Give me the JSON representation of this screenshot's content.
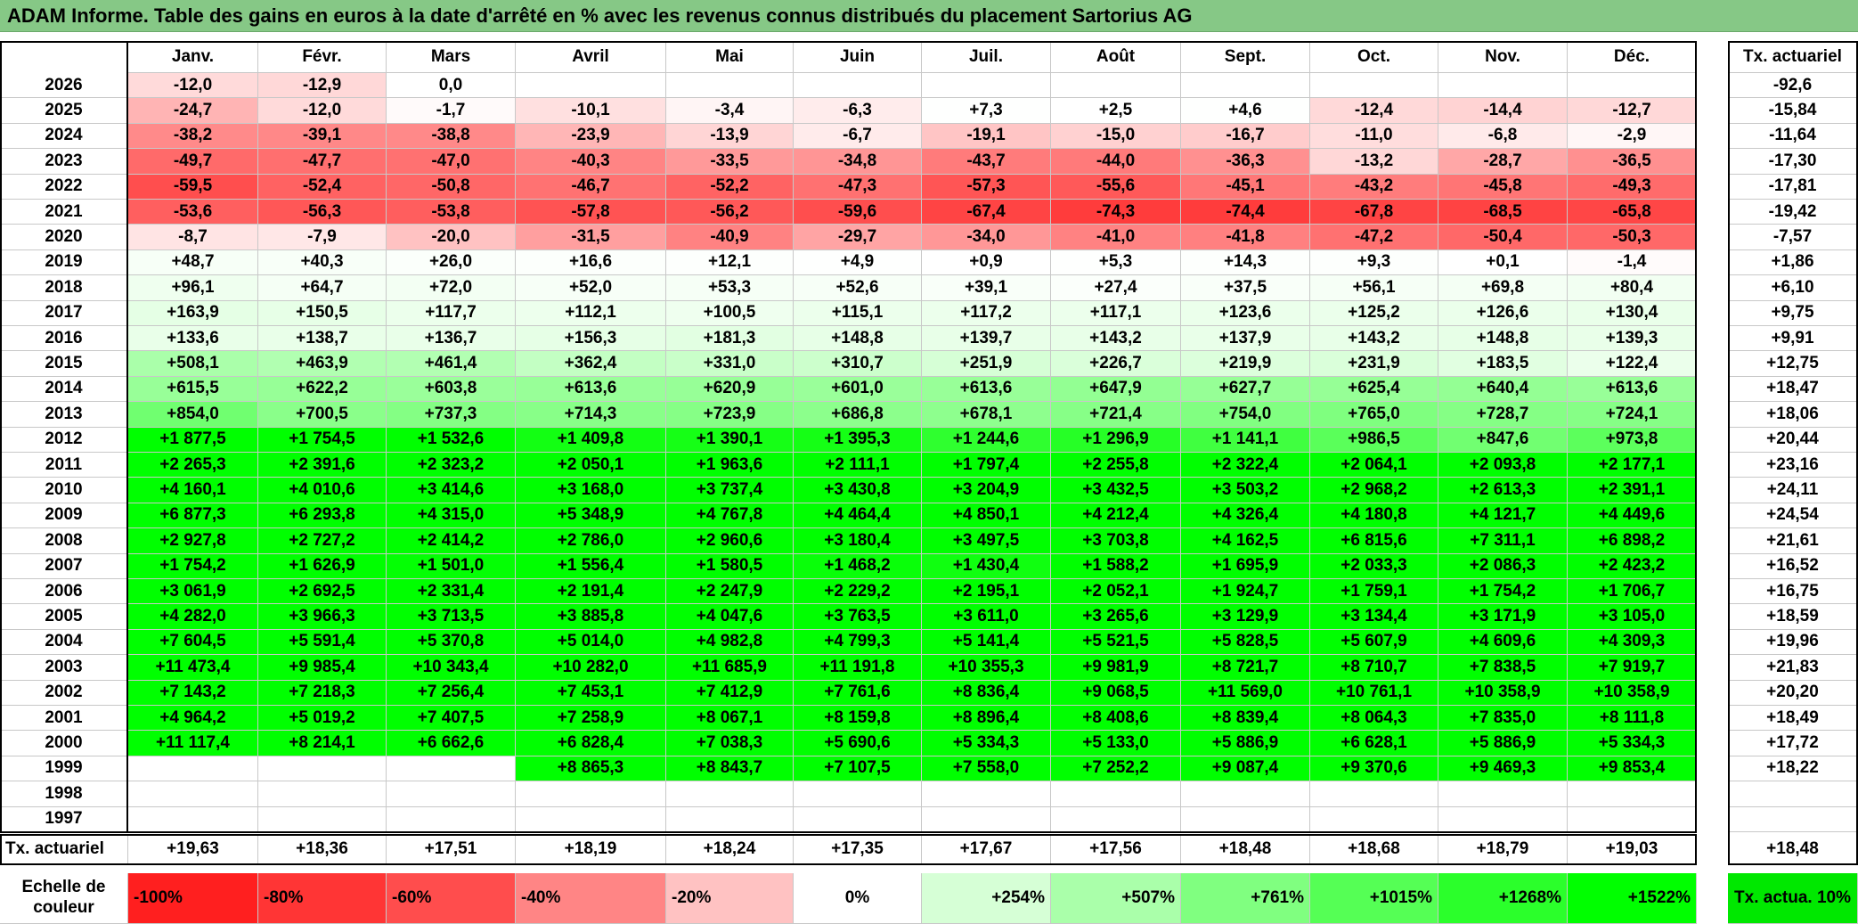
{
  "title": "ADAM Informe. Table des gains en euros à la date d'arrêté en % avec les revenus connus distribués du placement Sartorius AG",
  "table": {
    "months": [
      "Janv.",
      "Févr.",
      "Mars",
      "Avril",
      "Mai",
      "Juin",
      "Juil.",
      "Août",
      "Sept.",
      "Oct.",
      "Nov.",
      "Déc."
    ],
    "tx_header": "Tx. actuariel",
    "rows": [
      {
        "year": "2026",
        "values": [
          "-12,0",
          "-12,9",
          "0,0",
          null,
          null,
          null,
          null,
          null,
          null,
          null,
          null,
          null
        ],
        "tx": "-92,6"
      },
      {
        "year": "2025",
        "values": [
          "-24,7",
          "-12,0",
          "-1,7",
          "-10,1",
          "-3,4",
          "-6,3",
          "+7,3",
          "+2,5",
          "+4,6",
          "-12,4",
          "-14,4",
          "-12,7"
        ],
        "tx": "-15,84"
      },
      {
        "year": "2024",
        "values": [
          "-38,2",
          "-39,1",
          "-38,8",
          "-23,9",
          "-13,9",
          "-6,7",
          "-19,1",
          "-15,0",
          "-16,7",
          "-11,0",
          "-6,8",
          "-2,9"
        ],
        "tx": "-11,64"
      },
      {
        "year": "2023",
        "values": [
          "-49,7",
          "-47,7",
          "-47,0",
          "-40,3",
          "-33,5",
          "-34,8",
          "-43,7",
          "-44,0",
          "-36,3",
          "-13,2",
          "-28,7",
          "-36,5"
        ],
        "tx": "-17,30"
      },
      {
        "year": "2022",
        "values": [
          "-59,5",
          "-52,4",
          "-50,8",
          "-46,7",
          "-52,2",
          "-47,3",
          "-57,3",
          "-55,6",
          "-45,1",
          "-43,2",
          "-45,8",
          "-49,3"
        ],
        "tx": "-17,81"
      },
      {
        "year": "2021",
        "values": [
          "-53,6",
          "-56,3",
          "-53,8",
          "-57,8",
          "-56,2",
          "-59,6",
          "-67,4",
          "-74,3",
          "-74,4",
          "-67,8",
          "-68,5",
          "-65,8"
        ],
        "tx": "-19,42"
      },
      {
        "year": "2020",
        "values": [
          "-8,7",
          "-7,9",
          "-20,0",
          "-31,5",
          "-40,9",
          "-29,7",
          "-34,0",
          "-41,0",
          "-41,8",
          "-47,2",
          "-50,4",
          "-50,3"
        ],
        "tx": "-7,57"
      },
      {
        "year": "2019",
        "values": [
          "+48,7",
          "+40,3",
          "+26,0",
          "+16,6",
          "+12,1",
          "+4,9",
          "+0,9",
          "+5,3",
          "+14,3",
          "+9,3",
          "+0,1",
          "-1,4"
        ],
        "tx": "+1,86"
      },
      {
        "year": "2018",
        "values": [
          "+96,1",
          "+64,7",
          "+72,0",
          "+52,0",
          "+53,3",
          "+52,6",
          "+39,1",
          "+27,4",
          "+37,5",
          "+56,1",
          "+69,8",
          "+80,4"
        ],
        "tx": "+6,10"
      },
      {
        "year": "2017",
        "values": [
          "+163,9",
          "+150,5",
          "+117,7",
          "+112,1",
          "+100,5",
          "+115,1",
          "+117,2",
          "+117,1",
          "+123,6",
          "+125,2",
          "+126,6",
          "+130,4"
        ],
        "tx": "+9,75"
      },
      {
        "year": "2016",
        "values": [
          "+133,6",
          "+138,7",
          "+136,7",
          "+156,3",
          "+181,3",
          "+148,8",
          "+139,7",
          "+143,2",
          "+137,9",
          "+143,2",
          "+148,8",
          "+139,3"
        ],
        "tx": "+9,91"
      },
      {
        "year": "2015",
        "values": [
          "+508,1",
          "+463,9",
          "+461,4",
          "+362,4",
          "+331,0",
          "+310,7",
          "+251,9",
          "+226,7",
          "+219,9",
          "+231,9",
          "+183,5",
          "+122,4"
        ],
        "tx": "+12,75"
      },
      {
        "year": "2014",
        "values": [
          "+615,5",
          "+622,2",
          "+603,8",
          "+613,6",
          "+620,9",
          "+601,0",
          "+613,6",
          "+647,9",
          "+627,7",
          "+625,4",
          "+640,4",
          "+613,6"
        ],
        "tx": "+18,47"
      },
      {
        "year": "2013",
        "values": [
          "+854,0",
          "+700,5",
          "+737,3",
          "+714,3",
          "+723,9",
          "+686,8",
          "+678,1",
          "+721,4",
          "+754,0",
          "+765,0",
          "+728,7",
          "+724,1"
        ],
        "tx": "+18,06"
      },
      {
        "year": "2012",
        "values": [
          "+1 877,5",
          "+1 754,5",
          "+1 532,6",
          "+1 409,8",
          "+1 390,1",
          "+1 395,3",
          "+1 244,6",
          "+1 296,9",
          "+1 141,1",
          "+986,5",
          "+847,6",
          "+973,8"
        ],
        "tx": "+20,44"
      },
      {
        "year": "2011",
        "values": [
          "+2 265,3",
          "+2 391,6",
          "+2 323,2",
          "+2 050,1",
          "+1 963,6",
          "+2 111,1",
          "+1 797,4",
          "+2 255,8",
          "+2 322,4",
          "+2 064,1",
          "+2 093,8",
          "+2 177,1"
        ],
        "tx": "+23,16"
      },
      {
        "year": "2010",
        "values": [
          "+4 160,1",
          "+4 010,6",
          "+3 414,6",
          "+3 168,0",
          "+3 737,4",
          "+3 430,8",
          "+3 204,9",
          "+3 432,5",
          "+3 503,2",
          "+2 968,2",
          "+2 613,3",
          "+2 391,1"
        ],
        "tx": "+24,11"
      },
      {
        "year": "2009",
        "values": [
          "+6 877,3",
          "+6 293,8",
          "+4 315,0",
          "+5 348,9",
          "+4 767,8",
          "+4 464,4",
          "+4 850,1",
          "+4 212,4",
          "+4 326,4",
          "+4 180,8",
          "+4 121,7",
          "+4 449,6"
        ],
        "tx": "+24,54"
      },
      {
        "year": "2008",
        "values": [
          "+2 927,8",
          "+2 727,2",
          "+2 414,2",
          "+2 786,0",
          "+2 960,6",
          "+3 180,4",
          "+3 497,5",
          "+3 703,8",
          "+4 162,5",
          "+6 815,6",
          "+7 311,1",
          "+6 898,2"
        ],
        "tx": "+21,61"
      },
      {
        "year": "2007",
        "values": [
          "+1 754,2",
          "+1 626,9",
          "+1 501,0",
          "+1 556,4",
          "+1 580,5",
          "+1 468,2",
          "+1 430,4",
          "+1 588,2",
          "+1 695,9",
          "+2 033,3",
          "+2 086,3",
          "+2 423,2"
        ],
        "tx": "+16,52"
      },
      {
        "year": "2006",
        "values": [
          "+3 061,9",
          "+2 692,5",
          "+2 331,4",
          "+2 191,4",
          "+2 247,9",
          "+2 229,2",
          "+2 195,1",
          "+2 052,1",
          "+1 924,7",
          "+1 759,1",
          "+1 754,2",
          "+1 706,7"
        ],
        "tx": "+16,75"
      },
      {
        "year": "2005",
        "values": [
          "+4 282,0",
          "+3 966,3",
          "+3 713,5",
          "+3 885,8",
          "+4 047,6",
          "+3 763,5",
          "+3 611,0",
          "+3 265,6",
          "+3 129,9",
          "+3 134,4",
          "+3 171,9",
          "+3 105,0"
        ],
        "tx": "+18,59"
      },
      {
        "year": "2004",
        "values": [
          "+7 604,5",
          "+5 591,4",
          "+5 370,8",
          "+5 014,0",
          "+4 982,8",
          "+4 799,3",
          "+5 141,4",
          "+5 521,5",
          "+5 828,5",
          "+5 607,9",
          "+4 609,6",
          "+4 309,3"
        ],
        "tx": "+19,96"
      },
      {
        "year": "2003",
        "values": [
          "+11 473,4",
          "+9 985,4",
          "+10 343,4",
          "+10 282,0",
          "+11 685,9",
          "+11 191,8",
          "+10 355,3",
          "+9 981,9",
          "+8 721,7",
          "+8 710,7",
          "+7 838,5",
          "+7 919,7"
        ],
        "tx": "+21,83"
      },
      {
        "year": "2002",
        "values": [
          "+7 143,2",
          "+7 218,3",
          "+7 256,4",
          "+7 453,1",
          "+7 412,9",
          "+7 761,6",
          "+8 836,4",
          "+9 068,5",
          "+11 569,0",
          "+10 761,1",
          "+10 358,9",
          "+10 358,9"
        ],
        "tx": "+20,20"
      },
      {
        "year": "2001",
        "values": [
          "+4 964,2",
          "+5 019,2",
          "+7 407,5",
          "+7 258,9",
          "+8 067,1",
          "+8 159,8",
          "+8 896,4",
          "+8 408,6",
          "+8 839,4",
          "+8 064,3",
          "+7 835,0",
          "+8 111,8"
        ],
        "tx": "+18,49"
      },
      {
        "year": "2000",
        "values": [
          "+11 117,4",
          "+8 214,1",
          "+6 662,6",
          "+6 828,4",
          "+7 038,3",
          "+5 690,6",
          "+5 334,3",
          "+5 133,0",
          "+5 886,9",
          "+6 628,1",
          "+5 886,9",
          "+5 334,3"
        ],
        "tx": "+17,72"
      },
      {
        "year": "1999",
        "values": [
          null,
          null,
          null,
          "+8 865,3",
          "+8 843,7",
          "+7 107,5",
          "+7 558,0",
          "+7 252,2",
          "+9 087,4",
          "+9 370,6",
          "+9 469,3",
          "+9 853,4"
        ],
        "tx": "+18,22"
      },
      {
        "year": "1998",
        "values": [
          null,
          null,
          null,
          null,
          null,
          null,
          null,
          null,
          null,
          null,
          null,
          null
        ],
        "tx": null
      },
      {
        "year": "1997",
        "values": [
          null,
          null,
          null,
          null,
          null,
          null,
          null,
          null,
          null,
          null,
          null,
          null
        ],
        "tx": null
      }
    ]
  },
  "footer": {
    "label": "Tx. actuariel",
    "values": [
      "+19,63",
      "+18,36",
      "+17,51",
      "+18,19",
      "+18,24",
      "+17,35",
      "+17,67",
      "+17,56",
      "+18,48",
      "+18,68",
      "+18,79",
      "+19,03"
    ],
    "tx": "+18,48"
  },
  "scale": {
    "label": "Echelle de couleur",
    "stops": [
      {
        "label": "-100%",
        "color": "#ff1f1f"
      },
      {
        "label": "-80%",
        "color": "#ff3535"
      },
      {
        "label": "-60%",
        "color": "#ff4d4d"
      },
      {
        "label": "-40%",
        "color": "#ff8585"
      },
      {
        "label": "-20%",
        "color": "#ffc2c2"
      },
      {
        "label": "0%",
        "color": "#ffffff"
      },
      {
        "label": "+254%",
        "color": "#d6ffd6"
      },
      {
        "label": "+507%",
        "color": "#aaffaa"
      },
      {
        "label": "+761%",
        "color": "#80ff80"
      },
      {
        "label": "+1015%",
        "color": "#55ff55"
      },
      {
        "label": "+1268%",
        "color": "#2bff2b"
      },
      {
        "label": "+1522%",
        "color": "#00ff00"
      }
    ],
    "tx": {
      "label": "Tx. actua. 10%",
      "color": "#00e800"
    }
  }
}
